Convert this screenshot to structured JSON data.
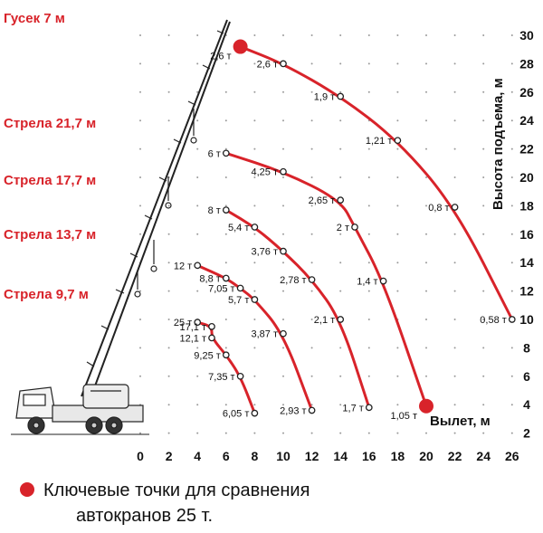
{
  "chart_data": {
    "type": "line",
    "xlabel": "Вылет, м",
    "ylabel": "Высота подъема, м",
    "x_ticks": [
      "0",
      "2",
      "4",
      "6",
      "8",
      "10",
      "12",
      "14",
      "16",
      "18",
      "20",
      "22",
      "24",
      "26"
    ],
    "y_ticks": [
      "2",
      "4",
      "6",
      "8",
      "10",
      "12",
      "14",
      "16",
      "18",
      "20",
      "22",
      "24",
      "26",
      "28",
      "30"
    ],
    "xlim": [
      0,
      26
    ],
    "ylim": [
      0,
      30
    ],
    "grid": true,
    "series": [
      {
        "name": "Гусек  7 м",
        "color": "#d8232a",
        "points": [
          {
            "x": 7.0,
            "y": 29.2,
            "label": "2,6 т",
            "key": true
          },
          {
            "x": 10.0,
            "y": 28.0,
            "label": "2,6 т"
          },
          {
            "x": 14.0,
            "y": 25.7,
            "label": "1,9 т"
          },
          {
            "x": 18.0,
            "y": 22.6,
            "label": "1,21 т"
          },
          {
            "x": 22.0,
            "y": 17.9,
            "label": "0,8 т"
          },
          {
            "x": 26.0,
            "y": 10.0,
            "label": "0,58 т"
          }
        ]
      },
      {
        "name": "Стрела 21,7 м",
        "color": "#d8232a",
        "points": [
          {
            "x": 6.0,
            "y": 21.7,
            "label": "6 т"
          },
          {
            "x": 10.0,
            "y": 20.4,
            "label": "4,25 т"
          },
          {
            "x": 14.0,
            "y": 18.4,
            "label": "2,65 т"
          },
          {
            "x": 15.0,
            "y": 16.5,
            "label": "2 т"
          },
          {
            "x": 17.0,
            "y": 12.7,
            "label": "1,4 т"
          },
          {
            "x": 20.0,
            "y": 3.9,
            "label": "1,05 т",
            "key": true
          }
        ]
      },
      {
        "name": "Стрела 17,7 м",
        "color": "#d8232a",
        "points": [
          {
            "x": 6.0,
            "y": 17.7,
            "label": "8 т"
          },
          {
            "x": 8.0,
            "y": 16.5,
            "label": "5,4 т"
          },
          {
            "x": 10.0,
            "y": 14.8,
            "label": "3,76 т"
          },
          {
            "x": 12.0,
            "y": 12.8,
            "label": "2,78 т"
          },
          {
            "x": 14.0,
            "y": 10.0,
            "label": "2,1 т"
          },
          {
            "x": 16.0,
            "y": 3.8,
            "label": "1,7 т"
          }
        ]
      },
      {
        "name": "Стрела 13,7 м",
        "color": "#d8232a",
        "points": [
          {
            "x": 4.0,
            "y": 13.8,
            "label": "12 т"
          },
          {
            "x": 6.0,
            "y": 12.9,
            "label": "8,8 т"
          },
          {
            "x": 7.0,
            "y": 12.2,
            "label": "7,05 т"
          },
          {
            "x": 8.0,
            "y": 11.4,
            "label": "5,7 т"
          },
          {
            "x": 10.0,
            "y": 9.0,
            "label": "3,87 т"
          },
          {
            "x": 12.0,
            "y": 3.6,
            "label": "2,93 т"
          }
        ]
      },
      {
        "name": "Стрела 9,7 м",
        "color": "#d8232a",
        "points": [
          {
            "x": 4.0,
            "y": 9.8,
            "label": "25 т"
          },
          {
            "x": 5.0,
            "y": 9.5,
            "label": "17,1 т"
          },
          {
            "x": 5.0,
            "y": 8.7,
            "label": "12,1 т"
          },
          {
            "x": 6.0,
            "y": 7.5,
            "label": "9,25 т"
          },
          {
            "x": 7.0,
            "y": 6.0,
            "label": "7,35 т"
          },
          {
            "x": 8.0,
            "y": 3.4,
            "label": "6,05 т"
          }
        ]
      }
    ]
  },
  "legend": {
    "text_line1": "Ключевые точки для сравнения",
    "text_line2": "автокранов 25 т.",
    "dot_color": "#d8232a"
  }
}
